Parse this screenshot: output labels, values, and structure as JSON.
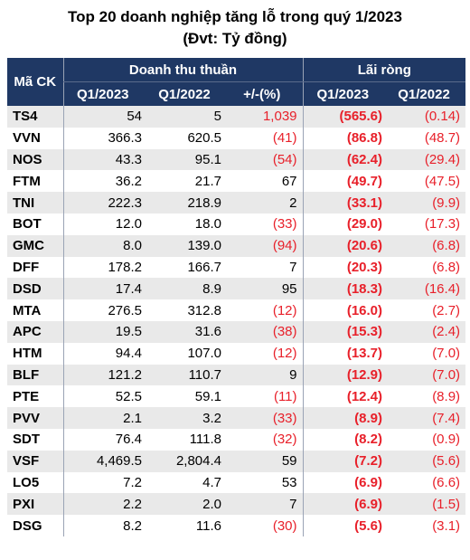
{
  "title": "Top 20 doanh nghiệp tăng lỗ trong quý 1/2023",
  "subtitle": "(Đvt: Tỷ đồng)",
  "headers": {
    "code": "Mã CK",
    "revenue_group": "Doanh thu thuần",
    "profit_group": "Lãi ròng",
    "rev_q1_2023": "Q1/2023",
    "rev_q1_2022": "Q1/2022",
    "rev_change": "+/-(%)",
    "np_q1_2023": "Q1/2023",
    "np_q1_2022": "Q1/2022"
  },
  "rows": [
    {
      "code": "TS4",
      "rev_2023": "54",
      "rev_2022": "5",
      "change": "1,039",
      "np_2023": "(565.6)",
      "np_2022": "(0.14)"
    },
    {
      "code": "VVN",
      "rev_2023": "366.3",
      "rev_2022": "620.5",
      "change": "(41)",
      "np_2023": "(86.8)",
      "np_2022": "(48.7)"
    },
    {
      "code": "NOS",
      "rev_2023": "43.3",
      "rev_2022": "95.1",
      "change": "(54)",
      "np_2023": "(62.4)",
      "np_2022": "(29.4)"
    },
    {
      "code": "FTM",
      "rev_2023": "36.2",
      "rev_2022": "21.7",
      "change": "67",
      "np_2023": "(49.7)",
      "np_2022": "(47.5)"
    },
    {
      "code": "TNI",
      "rev_2023": "222.3",
      "rev_2022": "218.9",
      "change": "2",
      "np_2023": "(33.1)",
      "np_2022": "(9.9)"
    },
    {
      "code": "BOT",
      "rev_2023": "12.0",
      "rev_2022": "18.0",
      "change": "(33)",
      "np_2023": "(29.0)",
      "np_2022": "(17.3)"
    },
    {
      "code": "GMC",
      "rev_2023": "8.0",
      "rev_2022": "139.0",
      "change": "(94)",
      "np_2023": "(20.6)",
      "np_2022": "(6.8)"
    },
    {
      "code": "DFF",
      "rev_2023": "178.2",
      "rev_2022": "166.7",
      "change": "7",
      "np_2023": "(20.3)",
      "np_2022": "(6.8)"
    },
    {
      "code": "DSD",
      "rev_2023": "17.4",
      "rev_2022": "8.9",
      "change": "95",
      "np_2023": "(18.3)",
      "np_2022": "(16.4)"
    },
    {
      "code": "MTA",
      "rev_2023": "276.5",
      "rev_2022": "312.8",
      "change": "(12)",
      "np_2023": "(16.0)",
      "np_2022": "(2.7)"
    },
    {
      "code": "APC",
      "rev_2023": "19.5",
      "rev_2022": "31.6",
      "change": "(38)",
      "np_2023": "(15.3)",
      "np_2022": "(2.4)"
    },
    {
      "code": "HTM",
      "rev_2023": "94.4",
      "rev_2022": "107.0",
      "change": "(12)",
      "np_2023": "(13.7)",
      "np_2022": "(7.0)"
    },
    {
      "code": "BLF",
      "rev_2023": "121.2",
      "rev_2022": "110.7",
      "change": "9",
      "np_2023": "(12.9)",
      "np_2022": "(7.0)"
    },
    {
      "code": "PTE",
      "rev_2023": "52.5",
      "rev_2022": "59.1",
      "change": "(11)",
      "np_2023": "(12.4)",
      "np_2022": "(8.9)"
    },
    {
      "code": "PVV",
      "rev_2023": "2.1",
      "rev_2022": "3.2",
      "change": "(33)",
      "np_2023": "(8.9)",
      "np_2022": "(7.4)"
    },
    {
      "code": "SDT",
      "rev_2023": "76.4",
      "rev_2022": "111.8",
      "change": "(32)",
      "np_2023": "(8.2)",
      "np_2022": "(0.9)"
    },
    {
      "code": "VSF",
      "rev_2023": "4,469.5",
      "rev_2022": "2,804.4",
      "change": "59",
      "np_2023": "(7.2)",
      "np_2022": "(5.6)"
    },
    {
      "code": "LO5",
      "rev_2023": "7.2",
      "rev_2022": "4.7",
      "change": "53",
      "np_2023": "(6.9)",
      "np_2022": "(6.6)"
    },
    {
      "code": "PXI",
      "rev_2023": "2.2",
      "rev_2022": "2.0",
      "change": "7",
      "np_2023": "(6.9)",
      "np_2022": "(1.5)"
    },
    {
      "code": "DSG",
      "rev_2023": "8.2",
      "rev_2022": "11.6",
      "change": "(30)",
      "np_2023": "(5.6)",
      "np_2022": "(3.1)"
    }
  ],
  "colors": {
    "header_bg": "#1f3864",
    "header_text": "#ffffff",
    "negative": "#e8202a",
    "stripe": "#e9e9e9"
  }
}
